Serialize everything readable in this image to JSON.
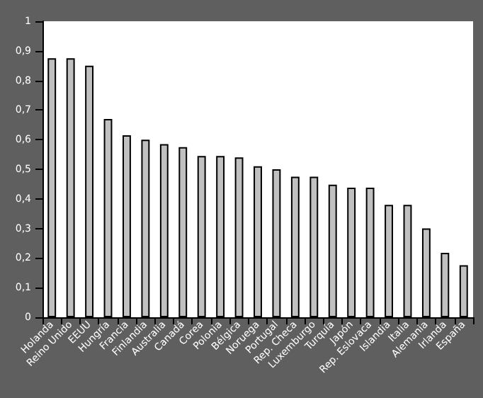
{
  "chart_data": {
    "type": "bar",
    "categories": [
      "Holanda",
      "Reino Unido",
      "EEUU",
      "Hungría",
      "Francia",
      "Finlandia",
      "Australia",
      "Canadá",
      "Corea",
      "Polonia",
      "Bélgica",
      "Noruega",
      "Portugal",
      "Rep. Checa",
      "Luxemburgo",
      "Turquía",
      "Japón",
      "Rep. Eslovaca",
      "Islandia",
      "Italia",
      "Alemania",
      "Irlanda",
      "España"
    ],
    "values": [
      0.875,
      0.875,
      0.85,
      0.67,
      0.615,
      0.6,
      0.585,
      0.575,
      0.545,
      0.545,
      0.54,
      0.51,
      0.5,
      0.475,
      0.475,
      0.448,
      0.438,
      0.438,
      0.38,
      0.38,
      0.3,
      0.218,
      0.176
    ],
    "color": "#c0c0c0",
    "ylim": [
      0,
      1
    ],
    "yticks": [
      0,
      {
        "value": 0.1,
        "label": "0,1"
      },
      {
        "value": 0.2,
        "label": "0,2"
      },
      {
        "value": 0.3,
        "label": "0,3"
      },
      {
        "value": 0.4,
        "label": "0,4"
      },
      {
        "value": 0.5,
        "label": "0,5"
      },
      {
        "value": 0.6,
        "label": "0,6"
      },
      {
        "value": 0.7,
        "label": "0,7"
      },
      {
        "value": 0.8,
        "label": "0,8"
      },
      {
        "value": 0.9,
        "label": "0,9"
      },
      1
    ],
    "grid": false
  }
}
